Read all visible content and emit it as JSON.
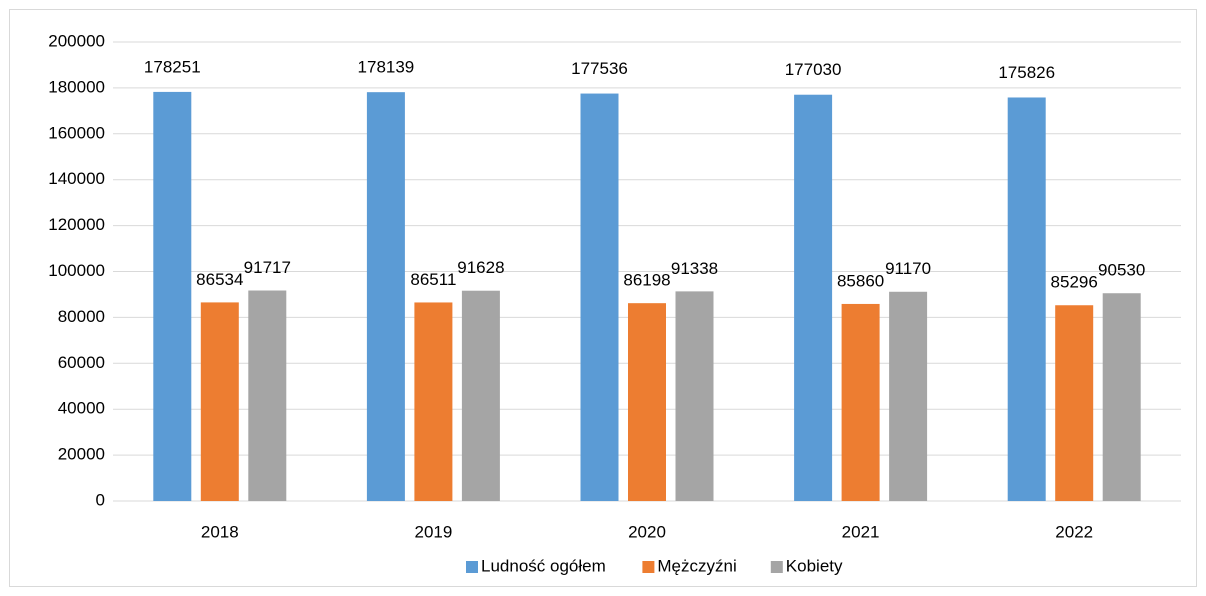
{
  "chart_data": {
    "type": "bar",
    "categories": [
      "2018",
      "2019",
      "2020",
      "2021",
      "2022"
    ],
    "series": [
      {
        "name": "Ludność ogółem",
        "color": "#5b9bd5",
        "values": [
          178251,
          178139,
          177536,
          177030,
          175826
        ]
      },
      {
        "name": "Mężczyźni",
        "color": "#ed7d31",
        "values": [
          86534,
          86511,
          86198,
          85860,
          85296
        ]
      },
      {
        "name": "Kobiety",
        "color": "#a5a5a5",
        "values": [
          91717,
          91628,
          91338,
          91170,
          90530
        ]
      }
    ],
    "ylim": [
      0,
      200000
    ],
    "yticks": [
      0,
      20000,
      40000,
      60000,
      80000,
      100000,
      120000,
      140000,
      160000,
      180000,
      200000
    ],
    "grid": true,
    "legend": "bottom"
  }
}
